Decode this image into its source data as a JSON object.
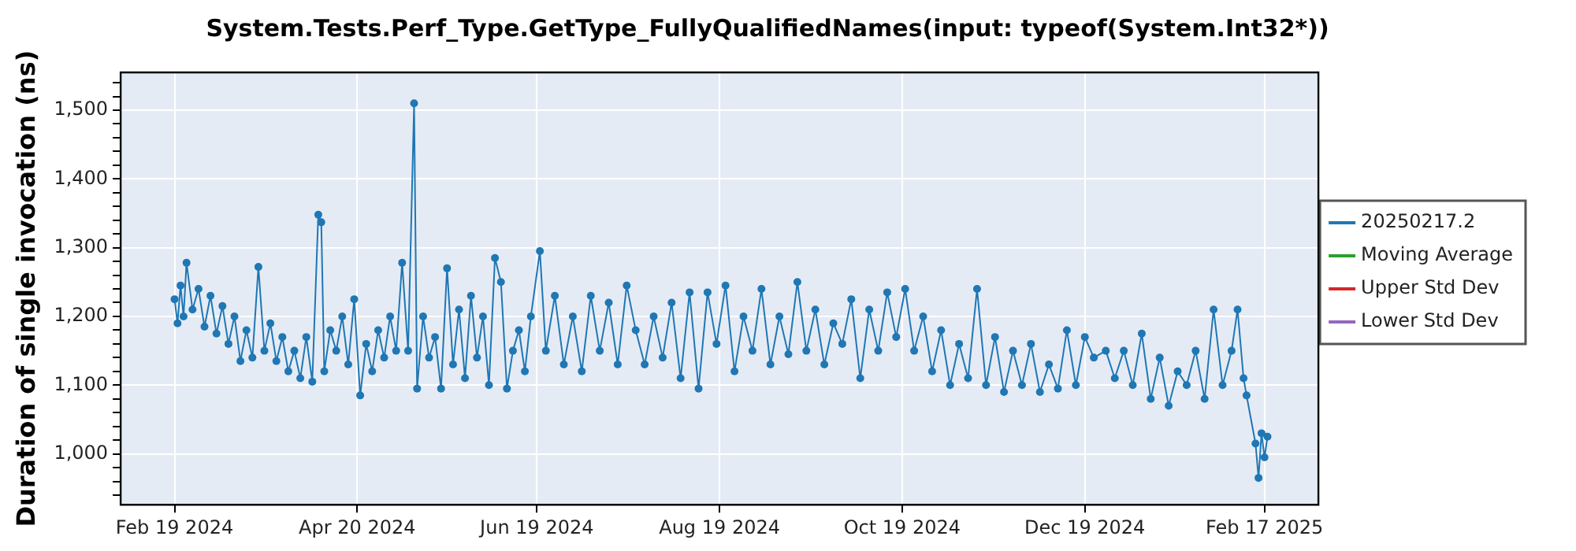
{
  "chart_data": {
    "type": "line",
    "title": "System.Tests.Perf_Type.GetType_FullyQualifiedNames(input: typeof(System.Int32*))",
    "ylabel": "Duration of single invocation (ns)",
    "xlim": [
      "2024-02-01",
      "2025-03-07"
    ],
    "xticks": [
      {
        "value": "2024-02-19",
        "label": "Feb 19 2024"
      },
      {
        "value": "2024-04-20",
        "label": "Apr 20 2024"
      },
      {
        "value": "2024-06-19",
        "label": "Jun 19 2024"
      },
      {
        "value": "2024-08-19",
        "label": "Aug 19 2024"
      },
      {
        "value": "2024-10-19",
        "label": "Oct 19 2024"
      },
      {
        "value": "2024-12-19",
        "label": "Dec 19 2024"
      },
      {
        "value": "2025-02-17",
        "label": "Feb 17 2025"
      }
    ],
    "ylim": [
      926,
      1555
    ],
    "yticks": [
      {
        "value": 940,
        "label": null
      },
      {
        "value": 960,
        "label": null
      },
      {
        "value": 980,
        "label": null
      },
      {
        "value": 1000,
        "label": "1,000"
      },
      {
        "value": 1020,
        "label": null
      },
      {
        "value": 1040,
        "label": null
      },
      {
        "value": 1060,
        "label": null
      },
      {
        "value": 1080,
        "label": null
      },
      {
        "value": 1100,
        "label": "1,100"
      },
      {
        "value": 1120,
        "label": null
      },
      {
        "value": 1140,
        "label": null
      },
      {
        "value": 1160,
        "label": null
      },
      {
        "value": 1180,
        "label": null
      },
      {
        "value": 1200,
        "label": "1,200"
      },
      {
        "value": 1220,
        "label": null
      },
      {
        "value": 1240,
        "label": null
      },
      {
        "value": 1260,
        "label": null
      },
      {
        "value": 1280,
        "label": null
      },
      {
        "value": 1300,
        "label": "1,300"
      },
      {
        "value": 1320,
        "label": null
      },
      {
        "value": 1340,
        "label": null
      },
      {
        "value": 1360,
        "label": null
      },
      {
        "value": 1380,
        "label": null
      },
      {
        "value": 1400,
        "label": "1,400"
      },
      {
        "value": 1420,
        "label": null
      },
      {
        "value": 1440,
        "label": null
      },
      {
        "value": 1460,
        "label": null
      },
      {
        "value": 1480,
        "label": null
      },
      {
        "value": 1500,
        "label": "1,500"
      },
      {
        "value": 1520,
        "label": null
      },
      {
        "value": 1540,
        "label": null
      }
    ],
    "grid": true,
    "legend": "right",
    "marker": "circle",
    "line_style": "solid",
    "series": [
      {
        "name": "20250217.2",
        "color": "#1f77b4",
        "x": [
          "2024-02-19",
          "2024-02-20",
          "2024-02-21",
          "2024-02-22",
          "2024-02-23",
          "2024-02-25",
          "2024-02-27",
          "2024-02-29",
          "2024-03-02",
          "2024-03-04",
          "2024-03-06",
          "2024-03-08",
          "2024-03-10",
          "2024-03-12",
          "2024-03-14",
          "2024-03-16",
          "2024-03-18",
          "2024-03-20",
          "2024-03-22",
          "2024-03-24",
          "2024-03-26",
          "2024-03-28",
          "2024-03-30",
          "2024-04-01",
          "2024-04-03",
          "2024-04-05",
          "2024-04-07",
          "2024-04-08",
          "2024-04-09",
          "2024-04-11",
          "2024-04-13",
          "2024-04-15",
          "2024-04-17",
          "2024-04-19",
          "2024-04-21",
          "2024-04-23",
          "2024-04-25",
          "2024-04-27",
          "2024-04-29",
          "2024-05-01",
          "2024-05-03",
          "2024-05-05",
          "2024-05-07",
          "2024-05-09",
          "2024-05-10",
          "2024-05-12",
          "2024-05-14",
          "2024-05-16",
          "2024-05-18",
          "2024-05-20",
          "2024-05-22",
          "2024-05-24",
          "2024-05-26",
          "2024-05-28",
          "2024-05-30",
          "2024-06-01",
          "2024-06-03",
          "2024-06-05",
          "2024-06-07",
          "2024-06-09",
          "2024-06-11",
          "2024-06-13",
          "2024-06-15",
          "2024-06-17",
          "2024-06-20",
          "2024-06-22",
          "2024-06-25",
          "2024-06-28",
          "2024-07-01",
          "2024-07-04",
          "2024-07-07",
          "2024-07-10",
          "2024-07-13",
          "2024-07-16",
          "2024-07-19",
          "2024-07-22",
          "2024-07-25",
          "2024-07-28",
          "2024-07-31",
          "2024-08-03",
          "2024-08-06",
          "2024-08-09",
          "2024-08-12",
          "2024-08-15",
          "2024-08-18",
          "2024-08-21",
          "2024-08-24",
          "2024-08-27",
          "2024-08-30",
          "2024-09-02",
          "2024-09-05",
          "2024-09-08",
          "2024-09-11",
          "2024-09-14",
          "2024-09-17",
          "2024-09-20",
          "2024-09-23",
          "2024-09-26",
          "2024-09-29",
          "2024-10-02",
          "2024-10-05",
          "2024-10-08",
          "2024-10-11",
          "2024-10-14",
          "2024-10-17",
          "2024-10-20",
          "2024-10-23",
          "2024-10-26",
          "2024-10-29",
          "2024-11-01",
          "2024-11-04",
          "2024-11-07",
          "2024-11-10",
          "2024-11-13",
          "2024-11-16",
          "2024-11-19",
          "2024-11-22",
          "2024-11-25",
          "2024-11-28",
          "2024-12-01",
          "2024-12-04",
          "2024-12-07",
          "2024-12-10",
          "2024-12-13",
          "2024-12-16",
          "2024-12-19",
          "2024-12-22",
          "2024-12-26",
          "2024-12-29",
          "2025-01-01",
          "2025-01-04",
          "2025-01-07",
          "2025-01-10",
          "2025-01-13",
          "2025-01-16",
          "2025-01-19",
          "2025-01-22",
          "2025-01-25",
          "2025-01-28",
          "2025-01-31",
          "2025-02-03",
          "2025-02-06",
          "2025-02-08",
          "2025-02-10",
          "2025-02-11",
          "2025-02-14",
          "2025-02-15",
          "2025-02-16",
          "2025-02-17",
          "2025-02-18"
        ],
        "values": [
          1225,
          1190,
          1245,
          1200,
          1278,
          1210,
          1240,
          1185,
          1230,
          1175,
          1215,
          1160,
          1200,
          1135,
          1180,
          1140,
          1272,
          1150,
          1190,
          1135,
          1170,
          1120,
          1150,
          1110,
          1170,
          1105,
          1348,
          1337,
          1120,
          1180,
          1150,
          1200,
          1130,
          1225,
          1085,
          1160,
          1120,
          1180,
          1140,
          1200,
          1150,
          1278,
          1150,
          1510,
          1095,
          1200,
          1140,
          1170,
          1095,
          1270,
          1130,
          1210,
          1110,
          1230,
          1140,
          1200,
          1100,
          1285,
          1250,
          1095,
          1150,
          1180,
          1120,
          1200,
          1295,
          1150,
          1230,
          1130,
          1200,
          1120,
          1230,
          1150,
          1220,
          1130,
          1245,
          1180,
          1130,
          1200,
          1140,
          1220,
          1110,
          1235,
          1095,
          1235,
          1160,
          1245,
          1120,
          1200,
          1150,
          1240,
          1130,
          1200,
          1145,
          1250,
          1150,
          1210,
          1130,
          1190,
          1160,
          1225,
          1110,
          1210,
          1150,
          1235,
          1170,
          1240,
          1150,
          1200,
          1120,
          1180,
          1100,
          1160,
          1110,
          1240,
          1100,
          1170,
          1090,
          1150,
          1100,
          1160,
          1090,
          1130,
          1095,
          1180,
          1100,
          1170,
          1140,
          1150,
          1110,
          1150,
          1100,
          1175,
          1080,
          1140,
          1070,
          1120,
          1100,
          1150,
          1080,
          1210,
          1100,
          1150,
          1210,
          1110,
          1085,
          1015,
          965,
          1030,
          995,
          1025
        ]
      },
      {
        "name": "Moving Average",
        "color": "#2ca02c"
      },
      {
        "name": "Upper Std Dev",
        "color": "#d62728"
      },
      {
        "name": "Lower Std Dev",
        "color": "#9467bd"
      }
    ]
  }
}
